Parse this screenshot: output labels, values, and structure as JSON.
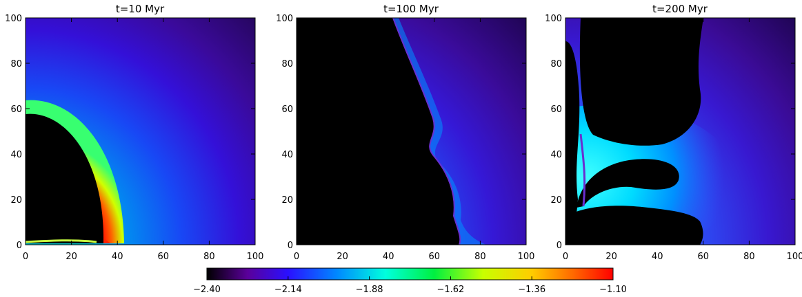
{
  "chart_data": [
    {
      "type": "heatmap",
      "title": "t=10 Myr",
      "xlabel": "",
      "ylabel": "",
      "xlim": [
        0,
        100
      ],
      "ylim": [
        0,
        100
      ],
      "xticks": [
        "0",
        "20",
        "40",
        "60",
        "80",
        "100"
      ],
      "yticks": [
        "0",
        "20",
        "40",
        "60",
        "80",
        "100"
      ],
      "features": [
        {
          "kind": "cavity",
          "value": -2.4,
          "shape": "quarter-ellipse",
          "x_extent": [
            0,
            37
          ],
          "y_extent": [
            0,
            58
          ]
        },
        {
          "kind": "shell",
          "value_range": [
            -1.36,
            -1.1
          ],
          "inner_radius": 37,
          "outer_radius": 43,
          "top_y": 64
        }
      ],
      "background": {
        "value_near_shell": -1.88,
        "value_at_corner": -2.4
      }
    },
    {
      "type": "heatmap",
      "title": "t=100 Myr",
      "xlabel": "",
      "ylabel": "",
      "xlim": [
        0,
        100
      ],
      "ylim": [
        0,
        100
      ],
      "xticks": [
        "0",
        "20",
        "40",
        "60",
        "80",
        "100"
      ],
      "yticks": [
        "0",
        "20",
        "40",
        "60",
        "80",
        "100"
      ],
      "features": [
        {
          "kind": "cavity",
          "value": -2.4,
          "front_x_at_y": [
            [
              0,
              72
            ],
            [
              20,
              70
            ],
            [
              40,
              62
            ],
            [
              60,
              62
            ],
            [
              80,
              50
            ],
            [
              100,
              42
            ]
          ]
        }
      ],
      "background": {
        "value_near_front": -1.95,
        "value_at_corner": -2.4
      }
    },
    {
      "type": "heatmap",
      "title": "t=200 Myr",
      "xlabel": "",
      "ylabel": "",
      "xlim": [
        0,
        100
      ],
      "ylim": [
        0,
        100
      ],
      "xticks": [
        "0",
        "20",
        "40",
        "60",
        "80",
        "100"
      ],
      "yticks": [
        "0",
        "20",
        "40",
        "60",
        "80",
        "100"
      ],
      "features": [
        {
          "kind": "upper-bubble",
          "value": -2.4,
          "x_extent": [
            6,
            60
          ],
          "y_extent": [
            55,
            100
          ]
        },
        {
          "kind": "middle-lobe",
          "value": -2.4,
          "x_extent": [
            10,
            50
          ],
          "y_extent": [
            18,
            34
          ]
        },
        {
          "kind": "lower-lobe",
          "value": -2.4,
          "x_extent": [
            8,
            62
          ],
          "y_extent": [
            0,
            16
          ]
        },
        {
          "kind": "bright-region",
          "value": -1.85,
          "x_extent": [
            5,
            90
          ],
          "y_extent": [
            8,
            48
          ]
        }
      ],
      "background": {
        "value_at_corner": -2.4
      }
    }
  ],
  "colorbar": {
    "min": -2.4,
    "max": -1.1,
    "colormap": "rainbow",
    "tick_labels": [
      "−2.40",
      "−2.14",
      "−1.88",
      "−1.62",
      "−1.36",
      "−1.10"
    ]
  },
  "colors": {
    "text": "#000000",
    "background": "#ffffff"
  }
}
